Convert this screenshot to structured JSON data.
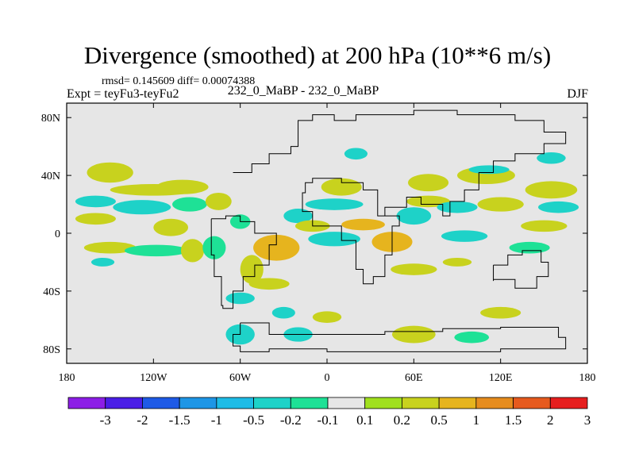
{
  "chart_data": {
    "type": "heatmap",
    "title": "Divergence (smoothed) at 200 hPa (10**6 m/s)",
    "stats": "rmsd= 0.145609 diff= 0.00074388",
    "left_label": "Expt = teyFu3-teyFu2",
    "center_label": "232_0_MaBP - 232_0_MaBP",
    "right_label": "DJF",
    "x_range": [
      -180,
      180
    ],
    "y_range": [
      -90,
      90
    ],
    "x_ticks": [
      {
        "value": -180,
        "label": "180"
      },
      {
        "value": -120,
        "label": "120W"
      },
      {
        "value": -60,
        "label": "60W"
      },
      {
        "value": 0,
        "label": "0"
      },
      {
        "value": 60,
        "label": "60E"
      },
      {
        "value": 120,
        "label": "120E"
      },
      {
        "value": 180,
        "label": "180"
      }
    ],
    "y_ticks": [
      {
        "value": 80,
        "label": "80N"
      },
      {
        "value": 40,
        "label": "40N"
      },
      {
        "value": 0,
        "label": "0"
      },
      {
        "value": -40,
        "label": "40S"
      },
      {
        "value": -80,
        "label": "80S"
      }
    ],
    "colorbar": {
      "levels": [
        "-3",
        "-2",
        "-1.5",
        "-1",
        "-0.5",
        "-0.2",
        "-0.1",
        "0.1",
        "0.2",
        "0.5",
        "1",
        "1.5",
        "2",
        "3"
      ],
      "colors": [
        "#8c1ee6",
        "#4a1ee6",
        "#1e5ae6",
        "#1e96e6",
        "#1ebce6",
        "#1ed2c8",
        "#1ee196",
        "#e6e6e6",
        "#a0e01e",
        "#c8d21e",
        "#e6b41e",
        "#e68c1e",
        "#e65a1e",
        "#e61e1e"
      ]
    },
    "blobs": [
      {
        "lon": -160,
        "lat": 22,
        "rx": 14,
        "ry": 4,
        "value": -0.4
      },
      {
        "lon": -128,
        "lat": 18,
        "rx": 20,
        "ry": 5,
        "value": -0.4
      },
      {
        "lon": -95,
        "lat": 20,
        "rx": 12,
        "ry": 5,
        "value": -0.2
      },
      {
        "lon": -120,
        "lat": 30,
        "rx": 30,
        "ry": 4,
        "value": 0.2
      },
      {
        "lon": -160,
        "lat": 10,
        "rx": 14,
        "ry": 4,
        "value": 0.25
      },
      {
        "lon": -150,
        "lat": 42,
        "rx": 16,
        "ry": 7,
        "value": 0.25
      },
      {
        "lon": -100,
        "lat": 32,
        "rx": 18,
        "ry": 5,
        "value": 0.25
      },
      {
        "lon": -75,
        "lat": 22,
        "rx": 9,
        "ry": 6,
        "value": 0.3
      },
      {
        "lon": -108,
        "lat": 4,
        "rx": 12,
        "ry": 6,
        "value": 0.25
      },
      {
        "lon": -150,
        "lat": -10,
        "rx": 18,
        "ry": 4,
        "value": 0.25
      },
      {
        "lon": -155,
        "lat": -20,
        "rx": 8,
        "ry": 3,
        "value": -0.3
      },
      {
        "lon": -118,
        "lat": -12,
        "rx": 22,
        "ry": 4,
        "value": -0.2
      },
      {
        "lon": -93,
        "lat": -12,
        "rx": 8,
        "ry": 8,
        "value": 0.3
      },
      {
        "lon": -60,
        "lat": 8,
        "rx": 7,
        "ry": 5,
        "value": -0.2
      },
      {
        "lon": -78,
        "lat": -10,
        "rx": 8,
        "ry": 8,
        "value": -0.2
      },
      {
        "lon": -52,
        "lat": -25,
        "rx": 8,
        "ry": 10,
        "value": 0.3
      },
      {
        "lon": -35,
        "lat": -10,
        "rx": 16,
        "ry": 9,
        "value": 0.6
      },
      {
        "lon": -20,
        "lat": 12,
        "rx": 10,
        "ry": 5,
        "value": -0.4
      },
      {
        "lon": -10,
        "lat": 5,
        "rx": 12,
        "ry": 4,
        "value": 0.25
      },
      {
        "lon": 10,
        "lat": 32,
        "rx": 14,
        "ry": 6,
        "value": 0.25
      },
      {
        "lon": 5,
        "lat": 20,
        "rx": 20,
        "ry": 4,
        "value": -0.3
      },
      {
        "lon": 25,
        "lat": 6,
        "rx": 15,
        "ry": 4,
        "value": 0.6
      },
      {
        "lon": 5,
        "lat": -4,
        "rx": 18,
        "ry": 5,
        "value": -0.4
      },
      {
        "lon": 45,
        "lat": -6,
        "rx": 14,
        "ry": 7,
        "value": 0.5
      },
      {
        "lon": 60,
        "lat": 12,
        "rx": 12,
        "ry": 6,
        "value": -0.3
      },
      {
        "lon": 70,
        "lat": 22,
        "rx": 15,
        "ry": 4,
        "value": 0.2
      },
      {
        "lon": 70,
        "lat": 35,
        "rx": 14,
        "ry": 6,
        "value": 0.4
      },
      {
        "lon": 110,
        "lat": 40,
        "rx": 20,
        "ry": 6,
        "value": 0.3
      },
      {
        "lon": 112,
        "lat": 44,
        "rx": 14,
        "ry": 3,
        "value": -0.4
      },
      {
        "lon": 90,
        "lat": 18,
        "rx": 14,
        "ry": 4,
        "value": -0.3
      },
      {
        "lon": 120,
        "lat": 20,
        "rx": 16,
        "ry": 5,
        "value": 0.4
      },
      {
        "lon": 155,
        "lat": 30,
        "rx": 18,
        "ry": 6,
        "value": 0.25
      },
      {
        "lon": 155,
        "lat": 52,
        "rx": 10,
        "ry": 4,
        "value": -0.4
      },
      {
        "lon": 160,
        "lat": 18,
        "rx": 14,
        "ry": 4,
        "value": -0.3
      },
      {
        "lon": 95,
        "lat": -2,
        "rx": 16,
        "ry": 4,
        "value": -0.3
      },
      {
        "lon": 150,
        "lat": 5,
        "rx": 16,
        "ry": 4,
        "value": 0.25
      },
      {
        "lon": 140,
        "lat": -10,
        "rx": 14,
        "ry": 4,
        "value": -0.2
      },
      {
        "lon": 90,
        "lat": -20,
        "rx": 10,
        "ry": 3,
        "value": 0.2
      },
      {
        "lon": 60,
        "lat": -25,
        "rx": 16,
        "ry": 4,
        "value": 0.25
      },
      {
        "lon": -60,
        "lat": -45,
        "rx": 10,
        "ry": 4,
        "value": -0.3
      },
      {
        "lon": -30,
        "lat": -55,
        "rx": 8,
        "ry": 4,
        "value": -0.3
      },
      {
        "lon": -20,
        "lat": -70,
        "rx": 10,
        "ry": 5,
        "value": -0.4
      },
      {
        "lon": -60,
        "lat": -70,
        "rx": 10,
        "ry": 7,
        "value": -0.3
      },
      {
        "lon": 0,
        "lat": -58,
        "rx": 10,
        "ry": 4,
        "value": 0.25
      },
      {
        "lon": 60,
        "lat": -70,
        "rx": 15,
        "ry": 6,
        "value": 0.3
      },
      {
        "lon": 100,
        "lat": -72,
        "rx": 12,
        "ry": 4,
        "value": -0.2
      },
      {
        "lon": 120,
        "lat": -55,
        "rx": 14,
        "ry": 4,
        "value": 0.25
      },
      {
        "lon": 20,
        "lat": 55,
        "rx": 8,
        "ry": 4,
        "value": -0.3
      },
      {
        "lon": -40,
        "lat": -35,
        "rx": 14,
        "ry": 4,
        "value": 0.3
      }
    ],
    "continent_outline": [
      [
        -65,
        42
      ],
      [
        -52,
        48
      ],
      [
        -40,
        55
      ],
      [
        -25,
        60
      ],
      [
        -20,
        78
      ],
      [
        -10,
        82
      ],
      [
        5,
        78
      ],
      [
        20,
        82
      ],
      [
        60,
        85
      ],
      [
        90,
        82
      ],
      [
        130,
        78
      ],
      [
        150,
        70
      ],
      [
        165,
        62
      ],
      [
        150,
        55
      ],
      [
        130,
        50
      ],
      [
        115,
        42
      ],
      [
        105,
        30
      ],
      [
        95,
        22
      ],
      [
        85,
        12
      ],
      [
        80,
        20
      ],
      [
        65,
        25
      ],
      [
        55,
        18
      ],
      [
        40,
        12
      ],
      [
        35,
        30
      ],
      [
        25,
        35
      ],
      [
        10,
        38
      ],
      [
        -5,
        38
      ],
      [
        -10,
        35
      ],
      [
        -15,
        28
      ],
      [
        -17,
        15
      ],
      [
        -10,
        5
      ],
      [
        5,
        5
      ],
      [
        10,
        -5
      ],
      [
        20,
        -25
      ],
      [
        25,
        -35
      ],
      [
        32,
        -30
      ],
      [
        40,
        -15
      ],
      [
        45,
        5
      ],
      [
        50,
        12
      ],
      [
        40,
        12
      ]
    ],
    "southam_outline": [
      [
        -80,
        10
      ],
      [
        -70,
        12
      ],
      [
        -60,
        8
      ],
      [
        -50,
        0
      ],
      [
        -35,
        -8
      ],
      [
        -40,
        -22
      ],
      [
        -50,
        -30
      ],
      [
        -58,
        -40
      ],
      [
        -65,
        -52
      ],
      [
        -72,
        -50
      ],
      [
        -73,
        -30
      ],
      [
        -78,
        -15
      ],
      [
        -80,
        0
      ],
      [
        -80,
        10
      ]
    ],
    "antarctica_outline": [
      [
        -60,
        -62
      ],
      [
        -40,
        -70
      ],
      [
        0,
        -70
      ],
      [
        40,
        -68
      ],
      [
        80,
        -66
      ],
      [
        120,
        -65
      ],
      [
        160,
        -72
      ],
      [
        165,
        -80
      ],
      [
        120,
        -82
      ],
      [
        60,
        -82
      ],
      [
        0,
        -80
      ],
      [
        -40,
        -82
      ],
      [
        -60,
        -78
      ],
      [
        -65,
        -70
      ],
      [
        -60,
        -62
      ]
    ],
    "australia_outline": [
      [
        115,
        -22
      ],
      [
        125,
        -15
      ],
      [
        135,
        -12
      ],
      [
        142,
        -12
      ],
      [
        148,
        -20
      ],
      [
        153,
        -30
      ],
      [
        145,
        -38
      ],
      [
        130,
        -32
      ],
      [
        115,
        -33
      ],
      [
        115,
        -22
      ]
    ]
  }
}
